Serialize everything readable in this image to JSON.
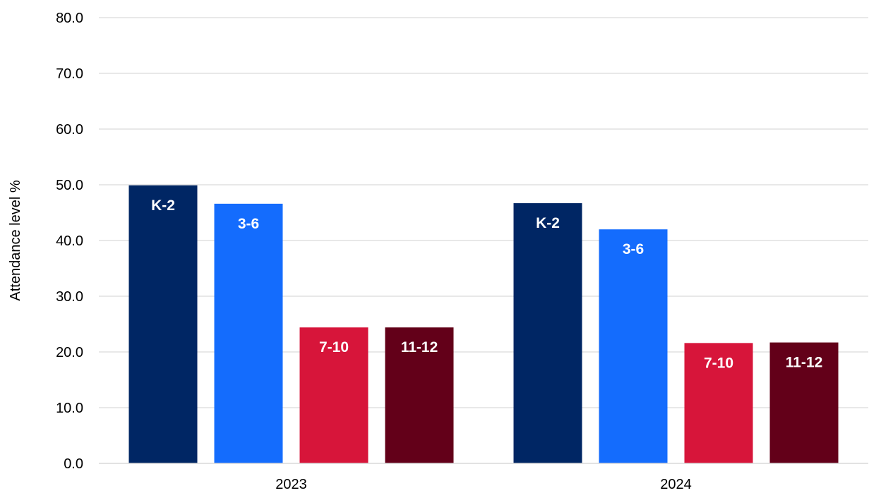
{
  "chart_data": {
    "type": "bar",
    "title": "",
    "xlabel": "",
    "ylabel": "Attendance level %",
    "ylim": [
      0,
      80
    ],
    "yticks": [
      "0.0",
      "10.0",
      "20.0",
      "30.0",
      "40.0",
      "50.0",
      "60.0",
      "70.0",
      "80.0"
    ],
    "grid": true,
    "legend": "none",
    "categories": [
      "2023",
      "2024"
    ],
    "series": [
      {
        "name": "K-2",
        "color": "#002664",
        "values": [
          49.9,
          46.7
        ]
      },
      {
        "name": "3-6",
        "color": "#146cfd",
        "values": [
          46.6,
          42.0
        ]
      },
      {
        "name": "7-10",
        "color": "#d7153a",
        "values": [
          24.4,
          21.6
        ]
      },
      {
        "name": "11-12",
        "color": "#630019",
        "values": [
          24.4,
          21.7
        ]
      }
    ]
  }
}
